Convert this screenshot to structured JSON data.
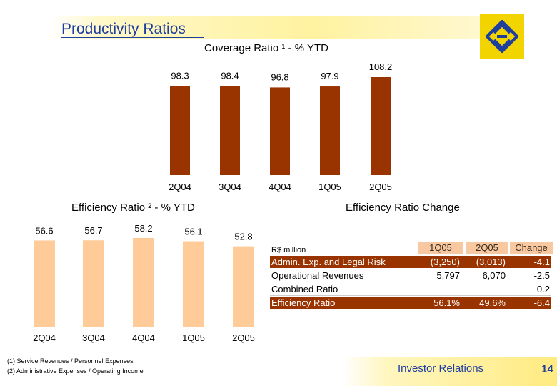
{
  "header": {
    "title": "Productivity Ratios"
  },
  "footer": {
    "label": "Investor Relations",
    "page_number": "14"
  },
  "footnotes": [
    "(1) Service Revenues / Personnel Expenses",
    "(2) Administrative Expenses / Operating Income"
  ],
  "colors": {
    "coverage_bar": "#993300",
    "efficiency_bar": "#ffcc99",
    "title_blue": "#1f3f9f",
    "logo_yellow": "#f2d400",
    "table_header_fill": "#f8c8a0",
    "table_highlight_fill": "#993300"
  },
  "chart_data": [
    {
      "type": "bar",
      "title": "Coverage Ratio ¹ - % YTD",
      "categories": [
        "2Q04",
        "3Q04",
        "4Q04",
        "1Q05",
        "2Q05"
      ],
      "values": [
        98.3,
        98.4,
        96.8,
        97.9,
        108.2
      ],
      "value_labels": [
        "98.3",
        "98.4",
        "96.8",
        "97.9",
        "108.2"
      ]
    },
    {
      "type": "bar",
      "title": "Efficiency Ratio ² - % YTD",
      "categories": [
        "2Q04",
        "3Q04",
        "4Q04",
        "1Q05",
        "2Q05"
      ],
      "values": [
        56.6,
        56.7,
        58.2,
        56.1,
        52.8
      ],
      "value_labels": [
        "56.6",
        "56.7",
        "58.2",
        "56.1",
        "52.8"
      ]
    },
    {
      "type": "table",
      "title": "Efficiency Ratio Change",
      "unit_label": "R$ million",
      "columns": [
        "1Q05",
        "2Q05",
        "Change"
      ],
      "rows": [
        {
          "label": "Admin. Exp. and Legal Risk",
          "values": [
            "(3,250)",
            "(3,013)",
            "-4.1"
          ],
          "highlight": true
        },
        {
          "label": "Operational Revenues",
          "values": [
            "5,797",
            "6,070",
            "-2.5"
          ],
          "highlight": false
        },
        {
          "label": "Combined Ratio",
          "values": [
            "",
            "",
            "0.2"
          ],
          "highlight": false
        },
        {
          "label": "Efficiency Ratio",
          "values": [
            "56.1%",
            "49.6%",
            "-6.4"
          ],
          "highlight": true
        }
      ]
    }
  ]
}
